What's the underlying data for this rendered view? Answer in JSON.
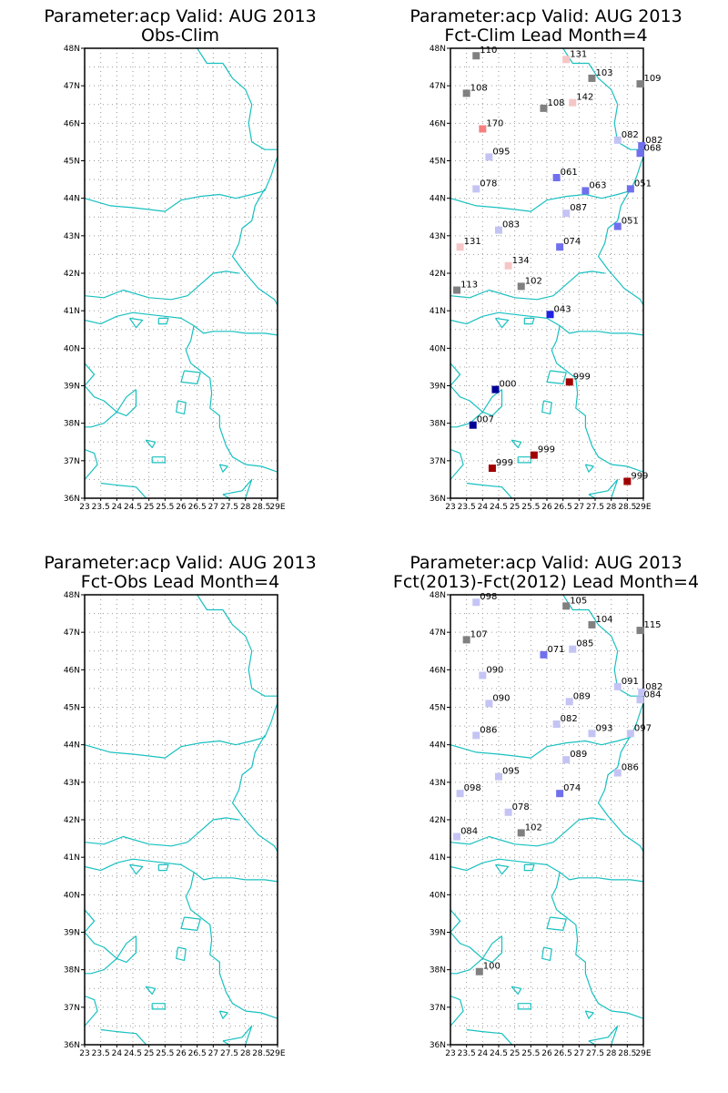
{
  "y_ticks": [
    "48N",
    "47N",
    "46N",
    "45N",
    "44N",
    "43N",
    "42N",
    "41N",
    "40N",
    "39N",
    "38N",
    "37N",
    "36N"
  ],
  "x_ticks": [
    "23",
    "23.5",
    "24",
    "24.5",
    "25",
    "25.5",
    "26",
    "26.5",
    "27",
    "27.5",
    "28",
    "28.5",
    "29E"
  ],
  "colors": {
    "gray": "#808080",
    "light_blue": "#c4c4f4",
    "mid_blue": "#7070ee",
    "blue": "#2020e0",
    "dark_blue": "#000096",
    "light_pink": "#f6c6c6",
    "salmon": "#f68080",
    "dark_red": "#a00000",
    "coast": "#19c0c0"
  },
  "panels": [
    {
      "title_line1": "Parameter:acp Valid: AUG 2013",
      "title_line2": "Obs-Clim",
      "stations": []
    },
    {
      "title_line1": "Parameter:acp Valid: AUG 2013",
      "title_line2": "Fct-Clim Lead Month=4",
      "stations": [
        {
          "lon": 23.8,
          "lat": 47.8,
          "label": "110",
          "color": "gray"
        },
        {
          "lon": 26.6,
          "lat": 47.7,
          "label": "131",
          "color": "light_pink"
        },
        {
          "lon": 27.4,
          "lat": 47.2,
          "label": "103",
          "color": "gray"
        },
        {
          "lon": 28.9,
          "lat": 47.05,
          "label": "109",
          "color": "gray"
        },
        {
          "lon": 23.5,
          "lat": 46.8,
          "label": "108",
          "color": "gray"
        },
        {
          "lon": 26.8,
          "lat": 46.55,
          "label": "142",
          "color": "light_pink"
        },
        {
          "lon": 25.9,
          "lat": 46.4,
          "label": "108",
          "color": "gray"
        },
        {
          "lon": 24.0,
          "lat": 45.85,
          "label": "170",
          "color": "salmon"
        },
        {
          "lon": 28.2,
          "lat": 45.55,
          "label": "082",
          "color": "light_blue"
        },
        {
          "lon": 28.95,
          "lat": 45.4,
          "label": "082",
          "color": "mid_blue"
        },
        {
          "lon": 28.9,
          "lat": 45.2,
          "label": "068",
          "color": "mid_blue"
        },
        {
          "lon": 24.2,
          "lat": 45.1,
          "label": "095",
          "color": "light_blue"
        },
        {
          "lon": 26.3,
          "lat": 44.55,
          "label": "061",
          "color": "mid_blue"
        },
        {
          "lon": 27.2,
          "lat": 44.2,
          "label": "063",
          "color": "mid_blue"
        },
        {
          "lon": 23.8,
          "lat": 44.25,
          "label": "078",
          "color": "light_blue"
        },
        {
          "lon": 28.6,
          "lat": 44.25,
          "label": "051",
          "color": "mid_blue"
        },
        {
          "lon": 26.6,
          "lat": 43.6,
          "label": "087",
          "color": "light_blue"
        },
        {
          "lon": 28.2,
          "lat": 43.25,
          "label": "051",
          "color": "mid_blue"
        },
        {
          "lon": 24.5,
          "lat": 43.15,
          "label": "083",
          "color": "light_blue"
        },
        {
          "lon": 26.4,
          "lat": 42.7,
          "label": "074",
          "color": "mid_blue"
        },
        {
          "lon": 23.3,
          "lat": 42.7,
          "label": "131",
          "color": "light_pink"
        },
        {
          "lon": 24.8,
          "lat": 42.2,
          "label": "134",
          "color": "light_pink"
        },
        {
          "lon": 25.2,
          "lat": 41.65,
          "label": "102",
          "color": "gray"
        },
        {
          "lon": 23.2,
          "lat": 41.55,
          "label": "113",
          "color": "gray"
        },
        {
          "lon": 26.1,
          "lat": 40.9,
          "label": "043",
          "color": "blue"
        },
        {
          "lon": 26.7,
          "lat": 39.1,
          "label": "999",
          "color": "dark_red"
        },
        {
          "lon": 24.4,
          "lat": 38.9,
          "label": "000",
          "color": "dark_blue"
        },
        {
          "lon": 23.7,
          "lat": 37.95,
          "label": "007",
          "color": "dark_blue"
        },
        {
          "lon": 25.6,
          "lat": 37.15,
          "label": "999",
          "color": "dark_red"
        },
        {
          "lon": 24.3,
          "lat": 36.8,
          "label": "999",
          "color": "dark_red"
        },
        {
          "lon": 28.5,
          "lat": 36.45,
          "label": "999",
          "color": "dark_red"
        }
      ]
    },
    {
      "title_line1": "Parameter:acp Valid: AUG 2013",
      "title_line2": "Fct-Obs Lead Month=4",
      "stations": []
    },
    {
      "title_line1": "Parameter:acp Valid: AUG 2013",
      "title_line2": "Fct(2013)-Fct(2012) Lead Month=4",
      "stations": [
        {
          "lon": 23.8,
          "lat": 47.8,
          "label": "098",
          "color": "light_blue"
        },
        {
          "lon": 26.6,
          "lat": 47.7,
          "label": "105",
          "color": "gray"
        },
        {
          "lon": 27.4,
          "lat": 47.2,
          "label": "104",
          "color": "gray"
        },
        {
          "lon": 28.9,
          "lat": 47.05,
          "label": "115",
          "color": "gray"
        },
        {
          "lon": 23.5,
          "lat": 46.8,
          "label": "107",
          "color": "gray"
        },
        {
          "lon": 26.8,
          "lat": 46.55,
          "label": "085",
          "color": "light_blue"
        },
        {
          "lon": 25.9,
          "lat": 46.4,
          "label": "071",
          "color": "mid_blue"
        },
        {
          "lon": 24.0,
          "lat": 45.85,
          "label": "090",
          "color": "light_blue"
        },
        {
          "lon": 28.2,
          "lat": 45.55,
          "label": "091",
          "color": "light_blue"
        },
        {
          "lon": 28.95,
          "lat": 45.4,
          "label": "082",
          "color": "light_blue"
        },
        {
          "lon": 28.9,
          "lat": 45.2,
          "label": "084",
          "color": "light_blue"
        },
        {
          "lon": 24.2,
          "lat": 45.1,
          "label": "090",
          "color": "light_blue"
        },
        {
          "lon": 26.7,
          "lat": 45.15,
          "label": "089",
          "color": "light_blue"
        },
        {
          "lon": 26.3,
          "lat": 44.55,
          "label": "082",
          "color": "light_blue"
        },
        {
          "lon": 27.4,
          "lat": 44.3,
          "label": "093",
          "color": "light_blue"
        },
        {
          "lon": 23.8,
          "lat": 44.25,
          "label": "086",
          "color": "light_blue"
        },
        {
          "lon": 28.6,
          "lat": 44.3,
          "label": "097",
          "color": "light_blue"
        },
        {
          "lon": 26.6,
          "lat": 43.6,
          "label": "089",
          "color": "light_blue"
        },
        {
          "lon": 28.2,
          "lat": 43.25,
          "label": "086",
          "color": "light_blue"
        },
        {
          "lon": 24.5,
          "lat": 43.15,
          "label": "095",
          "color": "light_blue"
        },
        {
          "lon": 26.4,
          "lat": 42.7,
          "label": "074",
          "color": "mid_blue"
        },
        {
          "lon": 23.3,
          "lat": 42.7,
          "label": "098",
          "color": "light_blue"
        },
        {
          "lon": 24.8,
          "lat": 42.2,
          "label": "078",
          "color": "light_blue"
        },
        {
          "lon": 25.2,
          "lat": 41.65,
          "label": "102",
          "color": "gray"
        },
        {
          "lon": 23.2,
          "lat": 41.55,
          "label": "084",
          "color": "light_blue"
        },
        {
          "lon": 23.9,
          "lat": 37.95,
          "label": "100",
          "color": "gray"
        }
      ]
    }
  ]
}
